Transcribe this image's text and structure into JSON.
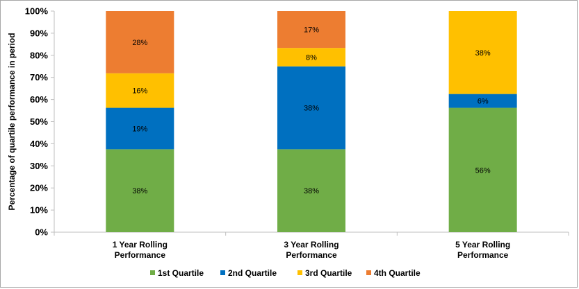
{
  "chart_data": {
    "type": "bar",
    "stacked": true,
    "title": "",
    "xlabel": "",
    "ylabel": "Percentage of quartile performance in period",
    "ylim": [
      0,
      100
    ],
    "yticks": [
      "0%",
      "10%",
      "20%",
      "30%",
      "40%",
      "50%",
      "60%",
      "70%",
      "80%",
      "90%",
      "100%"
    ],
    "categories": [
      [
        "1 Year Rolling",
        "Performance"
      ],
      [
        "3 Year Rolling",
        "Performance"
      ],
      [
        "5 Year Rolling",
        "Performance"
      ]
    ],
    "series": [
      {
        "name": "1st Quartile",
        "color": "#70ad47",
        "values": [
          37.5,
          37.5,
          56.25
        ],
        "labels": [
          "38%",
          "38%",
          "56%"
        ]
      },
      {
        "name": "2nd Quartile",
        "color": "#0070c0",
        "values": [
          18.75,
          37.5,
          6.25
        ],
        "labels": [
          "19%",
          "38%",
          "6%"
        ]
      },
      {
        "name": "3rd Quartile",
        "color": "#ffc000",
        "values": [
          15.625,
          8.33,
          37.5
        ],
        "labels": [
          "16%",
          "8%",
          "38%"
        ]
      },
      {
        "name": "4th Quartile",
        "color": "#ed7d31",
        "values": [
          28.125,
          16.67,
          0
        ],
        "labels": [
          "28%",
          "17%",
          ""
        ]
      }
    ],
    "grid": false,
    "legend_position": "bottom"
  }
}
